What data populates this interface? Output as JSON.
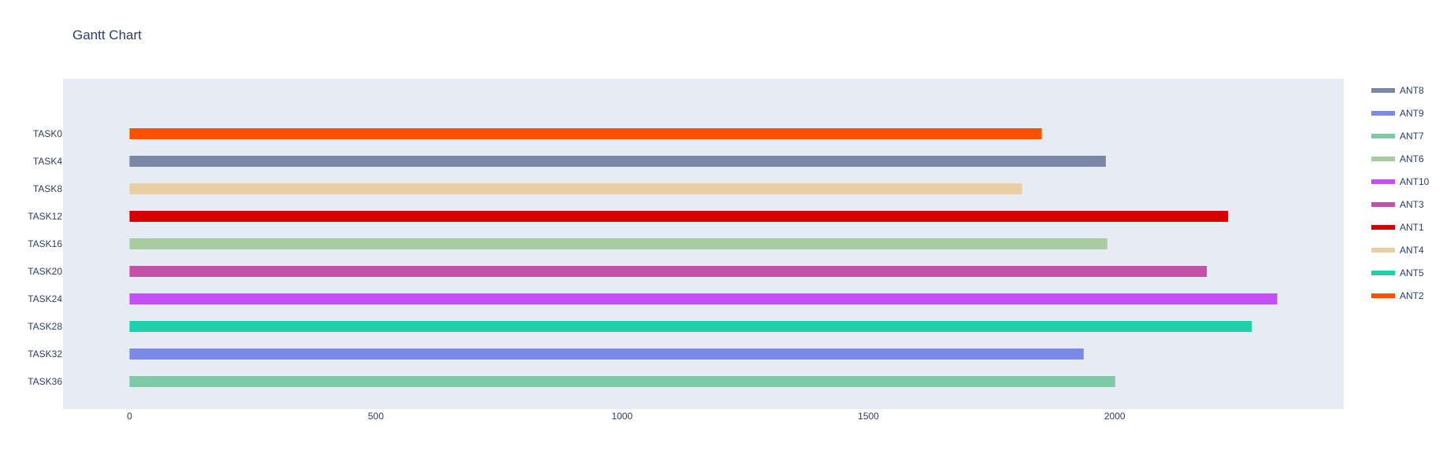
{
  "chart_data": {
    "type": "bar",
    "orientation": "horizontal",
    "title": "Gantt Chart",
    "xlabel": "",
    "ylabel": "",
    "xlim": [
      -135,
      2465
    ],
    "xticks": [
      0,
      500,
      1000,
      1500,
      2000
    ],
    "grid": false,
    "legend": "right",
    "categories": [
      "TASK0",
      "TASK4",
      "TASK8",
      "TASK12",
      "TASK16",
      "TASK20",
      "TASK24",
      "TASK28",
      "TASK32",
      "TASK36"
    ],
    "tasks": [
      {
        "task": "TASK0",
        "start": 0,
        "finish": 1852,
        "resource": "ANT2"
      },
      {
        "task": "TASK4",
        "start": 0,
        "finish": 1982,
        "resource": "ANT8"
      },
      {
        "task": "TASK8",
        "start": 0,
        "finish": 1812,
        "resource": "ANT4"
      },
      {
        "task": "TASK12",
        "start": 0,
        "finish": 2230,
        "resource": "ANT1"
      },
      {
        "task": "TASK16",
        "start": 0,
        "finish": 1985,
        "resource": "ANT6"
      },
      {
        "task": "TASK20",
        "start": 0,
        "finish": 2187,
        "resource": "ANT3"
      },
      {
        "task": "TASK24",
        "start": 0,
        "finish": 2330,
        "resource": "ANT10"
      },
      {
        "task": "TASK28",
        "start": 0,
        "finish": 2278,
        "resource": "ANT5"
      },
      {
        "task": "TASK32",
        "start": 0,
        "finish": 1937,
        "resource": "ANT9"
      },
      {
        "task": "TASK36",
        "start": 0,
        "finish": 2001,
        "resource": "ANT7"
      }
    ],
    "series": [
      {
        "name": "ANT8",
        "color": "#7a88a6"
      },
      {
        "name": "ANT9",
        "color": "#7b8ae8"
      },
      {
        "name": "ANT7",
        "color": "#7ccba6"
      },
      {
        "name": "ANT6",
        "color": "#a8cca0"
      },
      {
        "name": "ANT10",
        "color": "#c34ff5"
      },
      {
        "name": "ANT3",
        "color": "#c84fa6"
      },
      {
        "name": "ANT1",
        "color": "#d50000"
      },
      {
        "name": "ANT4",
        "color": "#ebcda3"
      },
      {
        "name": "ANT5",
        "color": "#1fd0a8"
      },
      {
        "name": "ANT2",
        "color": "#ff5000"
      }
    ],
    "plot_background": "#e5ecf6"
  }
}
